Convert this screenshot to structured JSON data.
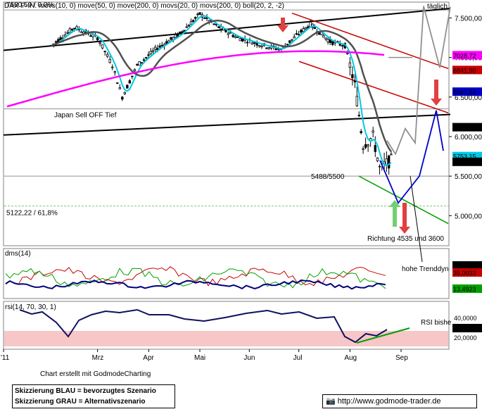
{
  "header": {
    "title": "DAX P-IN. movs(10, 0) move(50, 0) move(200, 0) movs(20, 0) movs(200, 0) boll(20, 2, -2)",
    "period": "täglich"
  },
  "colors": {
    "price": "#000000",
    "ma10": "#00c8e6",
    "ma50": "#505050",
    "ma200": "#ff00ff",
    "resistance_red": "#c80000",
    "scenario_blue": "#0000c8",
    "scenario_grey": "#909090",
    "support_green": "#00a000",
    "rsi_zone": "#f7c6c6",
    "arrow_red": "#e04040",
    "arrow_green": "#70d070"
  },
  "chart_data": [
    {
      "type": "line",
      "panel": "price",
      "x_ticks": [
        "'11",
        "Mrz",
        "Apr",
        "Mai",
        "Jun",
        "Jul",
        "Aug",
        "Sep"
      ],
      "y_ticks": [
        5000,
        5500,
        6000,
        6500,
        7000,
        7500
      ],
      "ylim": [
        4620,
        7700
      ],
      "price_path": {
        "dates": [
          "2011-02-01",
          "2011-02-15",
          "2011-03-01",
          "2011-03-10",
          "2011-03-16",
          "2011-03-25",
          "2011-04-05",
          "2011-04-20",
          "2011-05-02",
          "2011-05-12",
          "2011-05-25",
          "2011-06-10",
          "2011-06-20",
          "2011-07-01",
          "2011-07-08",
          "2011-07-20",
          "2011-07-29",
          "2011-08-04",
          "2011-08-09",
          "2011-08-15",
          "2011-08-19",
          "2011-08-26"
        ],
        "close": [
          7150,
          7380,
          7250,
          6900,
          6500,
          6900,
          7100,
          7300,
          7550,
          7400,
          7250,
          7150,
          7100,
          7300,
          7420,
          7200,
          7150,
          6650,
          5900,
          6000,
          5600,
          5700
        ]
      },
      "levels": [
        {
          "label": "7600,59 / 0,0%",
          "value": 7600.59
        },
        {
          "label": "Japan Sell OFF Tief",
          "value": 6350
        },
        {
          "label": "5488/5500",
          "value": 5500
        },
        {
          "label": "5122,22 / 61,8%",
          "value": 5122.22
        }
      ],
      "right_tags": [
        {
          "text": "7028,72",
          "value": 7028.72,
          "color": "#ff00ff"
        },
        {
          "text": "6841,90",
          "value": 6841.9,
          "color": "#c80000"
        },
        {
          "text": "6567,84",
          "value": 6567.84,
          "color": "#0000c8"
        },
        {
          "text": "6118,82",
          "value": 6118.82,
          "color": "#000000"
        },
        {
          "text": "5753,15",
          "value": 5753.15,
          "color": "#00c8e6"
        },
        {
          "text": "5681,08",
          "value": 5681.08,
          "color": "#000000"
        }
      ],
      "annotations": [
        "Richtung 4535 und 3600",
        "hohe Trenddyn"
      ]
    },
    {
      "type": "line",
      "panel": "dms",
      "title": "dms(14)",
      "right_tags": [
        {
          "text": "46,1002",
          "color": "#000000"
        },
        {
          "text": "35,0033",
          "color": "#c80000"
        },
        {
          "text": "13,4923",
          "color": "#00a000"
        }
      ]
    },
    {
      "type": "line",
      "panel": "rsi",
      "title": "rsi(14, 70, 30, 1)",
      "y_ticks": [
        "20,0000",
        "40,0000"
      ],
      "right_tags": [
        {
          "text": "31,5830",
          "color": "#000000"
        }
      ],
      "annotations": [
        "RSI bishe"
      ]
    }
  ],
  "footer": {
    "credit": "Chart erstellt mit GodmodeCharting",
    "legend_blue": "Skizzierung BLAU = bevorzugtes Szenario",
    "legend_grey": "Skizzierung GRAU = Alternativszenario",
    "url": "http://www.godmode-trader.de"
  }
}
